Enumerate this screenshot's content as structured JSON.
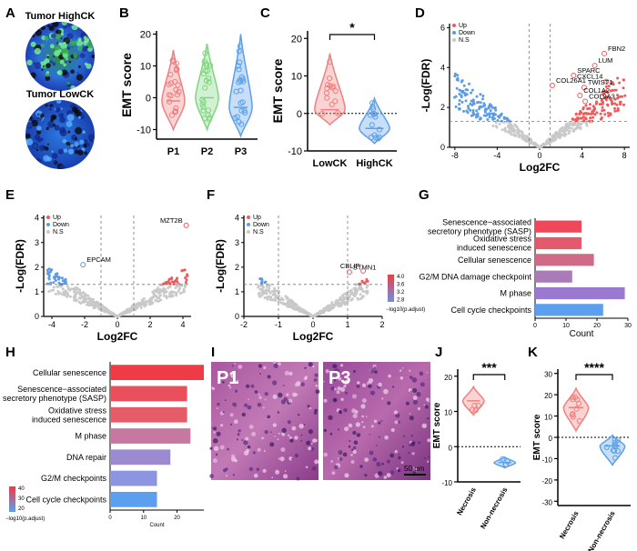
{
  "panels": {
    "A": {
      "letter": "A",
      "images": [
        {
          "label": "Tumor HighCK",
          "palette": "green"
        },
        {
          "label": "Tumor LowCK",
          "palette": "blue"
        }
      ]
    },
    "B": {
      "letter": "B"
    },
    "C": {
      "letter": "C"
    },
    "D": {
      "letter": "D"
    },
    "E": {
      "letter": "E"
    },
    "F": {
      "letter": "F"
    },
    "G": {
      "letter": "G"
    },
    "H": {
      "letter": "H"
    },
    "I": {
      "letter": "I",
      "images": [
        {
          "label": "P1"
        },
        {
          "label": "P3"
        }
      ],
      "scalebar": "50 μm"
    },
    "J": {
      "letter": "J"
    },
    "K": {
      "letter": "K"
    }
  },
  "chart_data": [
    {
      "panel": "B",
      "type": "violin",
      "ylabel": "EMT score",
      "categories": [
        "P1",
        "P2",
        "P3"
      ],
      "colors": [
        "#f08080",
        "#7fd67f",
        "#5da0e8"
      ],
      "ylim": [
        -13,
        21
      ],
      "yticks": [
        -10,
        0,
        10,
        20
      ],
      "series": [
        {
          "name": "P1",
          "min": -10,
          "max": 15,
          "median": -1
        },
        {
          "name": "P2",
          "min": -10,
          "max": 17,
          "median": 0
        },
        {
          "name": "P3",
          "min": -12,
          "max": 20,
          "median": -3
        }
      ]
    },
    {
      "panel": "C",
      "type": "violin",
      "ylabel": "EMT score",
      "categories": [
        "LowCK",
        "HighCK"
      ],
      "colors": [
        "#f08080",
        "#5da0e8"
      ],
      "ylim": [
        -10,
        22
      ],
      "yticks": [
        -10,
        0,
        10,
        20
      ],
      "reference_line": 0,
      "significance": "*",
      "series": [
        {
          "name": "LowCK",
          "min": -3,
          "max": 16,
          "median": 1
        },
        {
          "name": "HighCK",
          "min": -8,
          "max": 4,
          "median": -4
        }
      ]
    },
    {
      "panel": "D",
      "type": "scatter",
      "xlabel": "Log2FC",
      "ylabel": "-Log(FDR)",
      "xlim": [
        -8.5,
        8.5
      ],
      "ylim": [
        0,
        6.2
      ],
      "xticks": [
        -8,
        -4,
        0,
        4,
        8
      ],
      "yticks": [
        0,
        2,
        4,
        6
      ],
      "legend": [
        "Up",
        "Down",
        "N.S"
      ],
      "thresholds": {
        "x": [
          -1,
          1
        ],
        "y": 1.3
      },
      "labels": [
        {
          "text": "FBN2",
          "x": 6.1,
          "y": 4.7
        },
        {
          "text": "LUM",
          "x": 5.2,
          "y": 4.1
        },
        {
          "text": "SPARC",
          "x": 3.2,
          "y": 3.6
        },
        {
          "text": "CXCL14",
          "x": 6.3,
          "y": 3.3
        },
        {
          "text": "COL26A1",
          "x": 1.2,
          "y": 3.1
        },
        {
          "text": "TWIST1",
          "x": 4.2,
          "y": 3.0
        },
        {
          "text": "COL1A2",
          "x": 3.8,
          "y": 2.6
        },
        {
          "text": "COL9A3",
          "x": 4.3,
          "y": 2.3
        }
      ]
    },
    {
      "panel": "E",
      "type": "scatter",
      "xlabel": "Log2FC",
      "ylabel": "-Log(FDR)",
      "xlim": [
        -4.5,
        4.5
      ],
      "ylim": [
        0,
        4.1
      ],
      "xticks": [
        -4,
        -2,
        0,
        2,
        4
      ],
      "yticks": [
        0,
        1,
        2,
        3,
        4
      ],
      "legend": [
        "Up",
        "Down",
        "N.S"
      ],
      "thresholds": {
        "x": [
          -1,
          1
        ],
        "y": 1.3
      },
      "labels": [
        {
          "text": "MZT2B",
          "x": 4.2,
          "y": 3.7
        },
        {
          "text": "EPCAM",
          "x": -2.1,
          "y": 2.1
        }
      ]
    },
    {
      "panel": "F",
      "type": "scatter",
      "xlabel": "Log2FC",
      "ylabel": "-Log(FDR)",
      "xlim": [
        -2,
        2
      ],
      "ylim": [
        0,
        4.1
      ],
      "xticks": [
        -2,
        -1,
        0,
        1,
        2
      ],
      "yticks": [
        0,
        1,
        2,
        3,
        4
      ],
      "legend": [
        "Up",
        "Down",
        "N.S"
      ],
      "thresholds": {
        "x": [
          -1,
          1
        ],
        "y": 1.3
      },
      "labels": [
        {
          "text": "STMN1",
          "x": 1.05,
          "y": 1.8
        },
        {
          "text": "CBLIF",
          "x": 1.45,
          "y": 1.85
        }
      ],
      "colorbar": {
        "title": "−log10(p.adjust)",
        "ticks": [
          "4.0",
          "3.6",
          "3.2",
          "2.8"
        ]
      }
    },
    {
      "panel": "G",
      "type": "bar",
      "orientation": "horizontal",
      "xlabel": "Count",
      "xlim": [
        0,
        30
      ],
      "xticks": [
        0,
        10,
        20,
        30
      ],
      "categories": [
        "Senescence−associated secretory phenotype (SASP)",
        "Oxidative stress induced senescence",
        "Cellular senescence",
        "G2/M DNA damage checkpoint",
        "M phase",
        "Cell cycle checkpoints"
      ],
      "category_lines": [
        [
          "Senescence−associated",
          "secretory phenotype (SASP)"
        ],
        [
          "Oxidative stress",
          "induced senescence"
        ],
        [
          "Cellular senescence"
        ],
        [
          "G2/M DNA damage checkpoint"
        ],
        [
          "M phase"
        ],
        [
          "Cell cycle checkpoints"
        ]
      ],
      "values": [
        15,
        15,
        19,
        12,
        29,
        22
      ],
      "colors": [
        "#f0475a",
        "#e35a6c",
        "#cf6b86",
        "#a97cb8",
        "#9a7ad0",
        "#5b9fee"
      ]
    },
    {
      "panel": "H",
      "type": "bar",
      "orientation": "horizontal",
      "xlabel": "Count",
      "xlim": [
        0,
        28
      ],
      "xticks": [
        0,
        10,
        20
      ],
      "categories": [
        "Cellular senescence",
        "Senescence−associated secretory phenotype (SASP)",
        "Oxidative stress induced senescence",
        "M phase",
        "DNA repair",
        "G2/M checkpoints",
        "Cell cycle checkpoints"
      ],
      "category_lines": [
        [
          "Cellular senescence"
        ],
        [
          "Senescence−associated",
          "secretory phenotype (SASP)"
        ],
        [
          "Oxidative stress",
          "induced senescence"
        ],
        [
          "M phase"
        ],
        [
          "DNA repair"
        ],
        [
          "G2/M checkpoints"
        ],
        [
          "Cell cycle checkpoints"
        ]
      ],
      "values": [
        28,
        23,
        23,
        24,
        18,
        14,
        14
      ],
      "colors": [
        "#ee3b45",
        "#e9505b",
        "#e35c68",
        "#c778a0",
        "#9b8ad0",
        "#8c96e0",
        "#5b9fee"
      ],
      "colorbar": {
        "title": "−log10(p.adjust)",
        "ticks": [
          "40",
          "30",
          "20"
        ]
      }
    },
    {
      "panel": "J",
      "type": "violin",
      "ylabel": "EMT score",
      "categories": [
        "Necrosis",
        "Non-necrosis"
      ],
      "colors": [
        "#f08080",
        "#5da0e8"
      ],
      "ylim": [
        -10,
        22
      ],
      "yticks": [
        -10,
        0,
        10,
        20
      ],
      "reference_line": 0,
      "significance": "***",
      "series": [
        {
          "name": "Necrosis",
          "min": 9,
          "max": 17,
          "median": 13
        },
        {
          "name": "Non-necrosis",
          "min": -6,
          "max": -3,
          "median": -4.5
        }
      ]
    },
    {
      "panel": "K",
      "type": "violin",
      "ylabel": "EMT score",
      "categories": [
        "Necrosis",
        "Non-necrosis"
      ],
      "colors": [
        "#f08080",
        "#5da0e8"
      ],
      "ylim": [
        -32,
        32
      ],
      "yticks": [
        -30,
        -20,
        -10,
        0,
        10,
        20,
        30
      ],
      "reference_line": 0,
      "significance": "****",
      "series": [
        {
          "name": "Necrosis",
          "min": 3,
          "max": 23,
          "median": 14
        },
        {
          "name": "Non-necrosis",
          "min": -13,
          "max": 1,
          "median": -4
        }
      ]
    }
  ]
}
